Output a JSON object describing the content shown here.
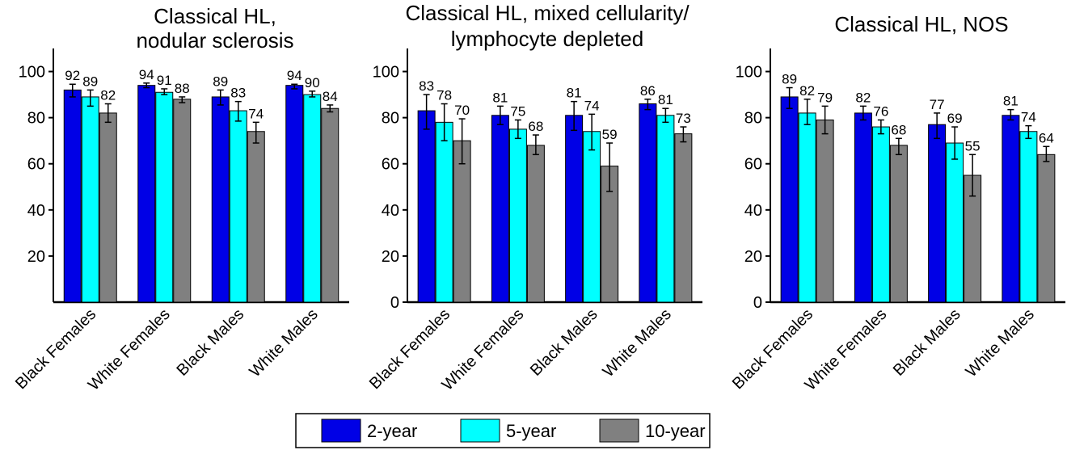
{
  "chart_data": {
    "type": "bar",
    "categories": [
      "Black Females",
      "White Females",
      "Black Males",
      "White Males"
    ],
    "legend": {
      "placement": "bottom-center",
      "entries": [
        {
          "label": "2-year",
          "color": "#0000e6"
        },
        {
          "label": "5-year",
          "color": "#00ffff"
        },
        {
          "label": "10-year",
          "color": "#808080"
        }
      ]
    },
    "ylim": [
      0,
      110
    ],
    "yticks": [
      0,
      20,
      40,
      60,
      80,
      100
    ],
    "grid": false,
    "panels": [
      {
        "title_lines": [
          "Classical HL,",
          "nodular sclerosis"
        ],
        "show_zero_tick": false,
        "series": [
          {
            "name": "2-year",
            "values": [
              92,
              94,
              89,
              94
            ],
            "labels": [
              "92",
              "94",
              "89",
              "94"
            ],
            "errors": [
              [
                89,
                94.5
              ],
              [
                93,
                95
              ],
              [
                85.5,
                92
              ],
              [
                92.5,
                94.5
              ]
            ]
          },
          {
            "name": "5-year",
            "values": [
              89,
              91,
              83,
              90
            ],
            "labels": [
              "89",
              "91",
              "83",
              "90"
            ],
            "errors": [
              [
                85,
                92
              ],
              [
                90,
                92.5
              ],
              [
                78.5,
                87
              ],
              [
                89,
                91.5
              ]
            ]
          },
          {
            "name": "10-year",
            "values": [
              82,
              88,
              74,
              84
            ],
            "labels": [
              "82",
              "88",
              "74",
              "84"
            ],
            "errors": [
              [
                78,
                86
              ],
              [
                86.5,
                89
              ],
              [
                69,
                78
              ],
              [
                82.5,
                85.5
              ]
            ]
          }
        ]
      },
      {
        "title_lines": [
          "Classical HL, mixed cellularity/",
          "lymphocyte depleted"
        ],
        "show_zero_tick": true,
        "series": [
          {
            "name": "2-year",
            "values": [
              83,
              81,
              81,
              86
            ],
            "labels": [
              "83",
              "81",
              "81",
              "86"
            ],
            "errors": [
              [
                75,
                90
              ],
              [
                77,
                85
              ],
              [
                74.5,
                87
              ],
              [
                83.5,
                88
              ]
            ]
          },
          {
            "name": "5-year",
            "values": [
              78,
              75,
              74,
              81
            ],
            "labels": [
              "78",
              "75",
              "74",
              "81"
            ],
            "errors": [
              [
                70,
                86
              ],
              [
                71,
                79
              ],
              [
                66,
                81.5
              ],
              [
                78,
                84
              ]
            ]
          },
          {
            "name": "10-year",
            "values": [
              70,
              68,
              59,
              73
            ],
            "labels": [
              "70",
              "68",
              "59",
              "73"
            ],
            "errors": [
              [
                60,
                79.5
              ],
              [
                64,
                72.5
              ],
              [
                48,
                69
              ],
              [
                69.5,
                76
              ]
            ]
          }
        ]
      },
      {
        "title_lines": [
          "Classical HL, NOS"
        ],
        "show_zero_tick": true,
        "series": [
          {
            "name": "2-year",
            "values": [
              89,
              82,
              77,
              81
            ],
            "labels": [
              "89",
              "82",
              "77",
              "81"
            ],
            "errors": [
              [
                84,
                93
              ],
              [
                79,
                85
              ],
              [
                71,
                82
              ],
              [
                79,
                83.5
              ]
            ]
          },
          {
            "name": "5-year",
            "values": [
              82,
              76,
              69,
              74
            ],
            "labels": [
              "82",
              "76",
              "69",
              "74"
            ],
            "errors": [
              [
                77,
                88
              ],
              [
                73,
                79
              ],
              [
                62,
                76
              ],
              [
                71,
                76.5
              ]
            ]
          },
          {
            "name": "10-year",
            "values": [
              79,
              68,
              55,
              64
            ],
            "labels": [
              "79",
              "68",
              "55",
              "64"
            ],
            "errors": [
              [
                73,
                85
              ],
              [
                64,
                71
              ],
              [
                46,
                64
              ],
              [
                61,
                67.5
              ]
            ]
          }
        ]
      }
    ]
  }
}
